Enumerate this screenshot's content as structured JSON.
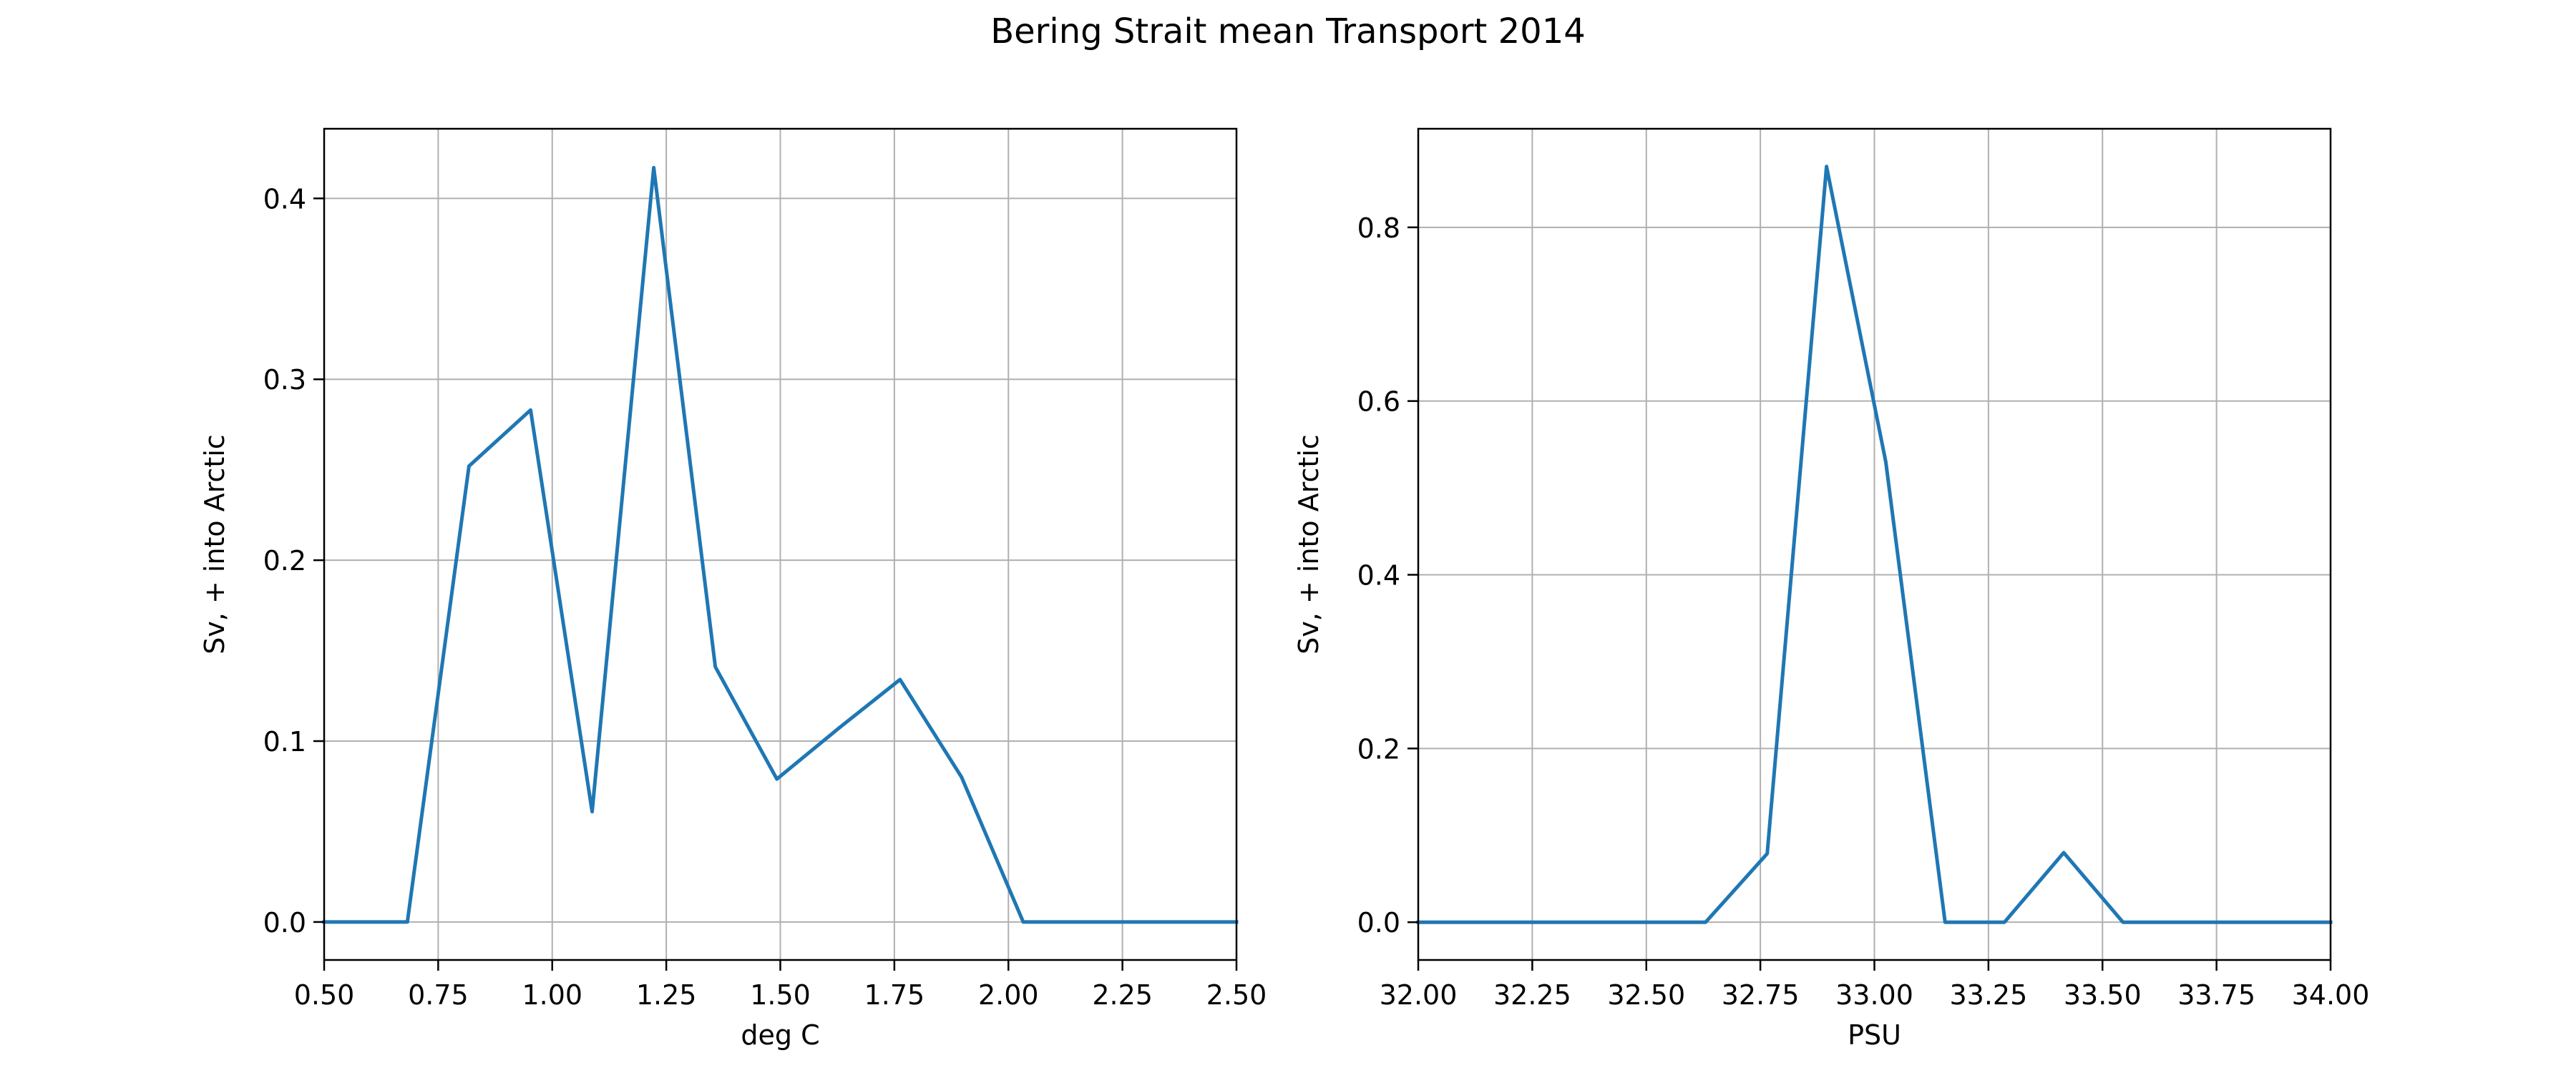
{
  "figure": {
    "suptitle": "Bering Strait mean Transport 2014"
  },
  "chart_data": [
    {
      "type": "line",
      "title": "",
      "xlabel": "deg C",
      "ylabel": "Sv, + into Arctic",
      "xlim": [
        0.5,
        2.5
      ],
      "ylim": [
        -0.021,
        0.4385
      ],
      "x_ticks": [
        0.5,
        0.75,
        1.0,
        1.25,
        1.5,
        1.75,
        2.0,
        2.25,
        2.5
      ],
      "x_tick_labels": [
        "0.50",
        "0.75",
        "1.00",
        "1.25",
        "1.50",
        "1.75",
        "2.00",
        "2.25",
        "2.50"
      ],
      "y_ticks": [
        0.0,
        0.1,
        0.2,
        0.3,
        0.4
      ],
      "y_tick_labels": [
        "0.0",
        "0.1",
        "0.2",
        "0.3",
        "0.4"
      ],
      "grid": true,
      "series": [
        {
          "color": "#1f77b4",
          "x": [
            0.5,
            0.6825,
            0.8175,
            0.9525,
            1.0875,
            1.2225,
            1.3575,
            1.4925,
            1.6275,
            1.7625,
            1.8975,
            2.0325,
            2.5
          ],
          "y": [
            0.0,
            0.0,
            0.252,
            0.283,
            0.061,
            0.417,
            0.141,
            0.079,
            0.107,
            0.134,
            0.08,
            0.0,
            0.0
          ]
        }
      ]
    },
    {
      "type": "line",
      "title": "",
      "xlabel": "PSU",
      "ylabel": "Sv, + into Arctic",
      "xlim": [
        32.0,
        34.0
      ],
      "ylim": [
        -0.0435,
        0.9135
      ],
      "x_ticks": [
        32.0,
        32.25,
        32.5,
        32.75,
        33.0,
        33.25,
        33.5,
        33.75,
        34.0
      ],
      "x_tick_labels": [
        "32.00",
        "32.25",
        "32.50",
        "32.75",
        "33.00",
        "33.25",
        "33.50",
        "33.75",
        "34.00"
      ],
      "y_ticks": [
        0.0,
        0.2,
        0.4,
        0.6,
        0.8
      ],
      "y_tick_labels": [
        "0.0",
        "0.2",
        "0.4",
        "0.6",
        "0.8"
      ],
      "grid": true,
      "series": [
        {
          "color": "#1f77b4",
          "x": [
            32.0,
            32.63,
            32.765,
            32.895,
            33.025,
            33.155,
            33.285,
            33.415,
            33.545,
            34.0
          ],
          "y": [
            0.0,
            0.0,
            0.079,
            0.87,
            0.53,
            0.0,
            0.0,
            0.08,
            0.0,
            0.0
          ]
        }
      ]
    }
  ]
}
